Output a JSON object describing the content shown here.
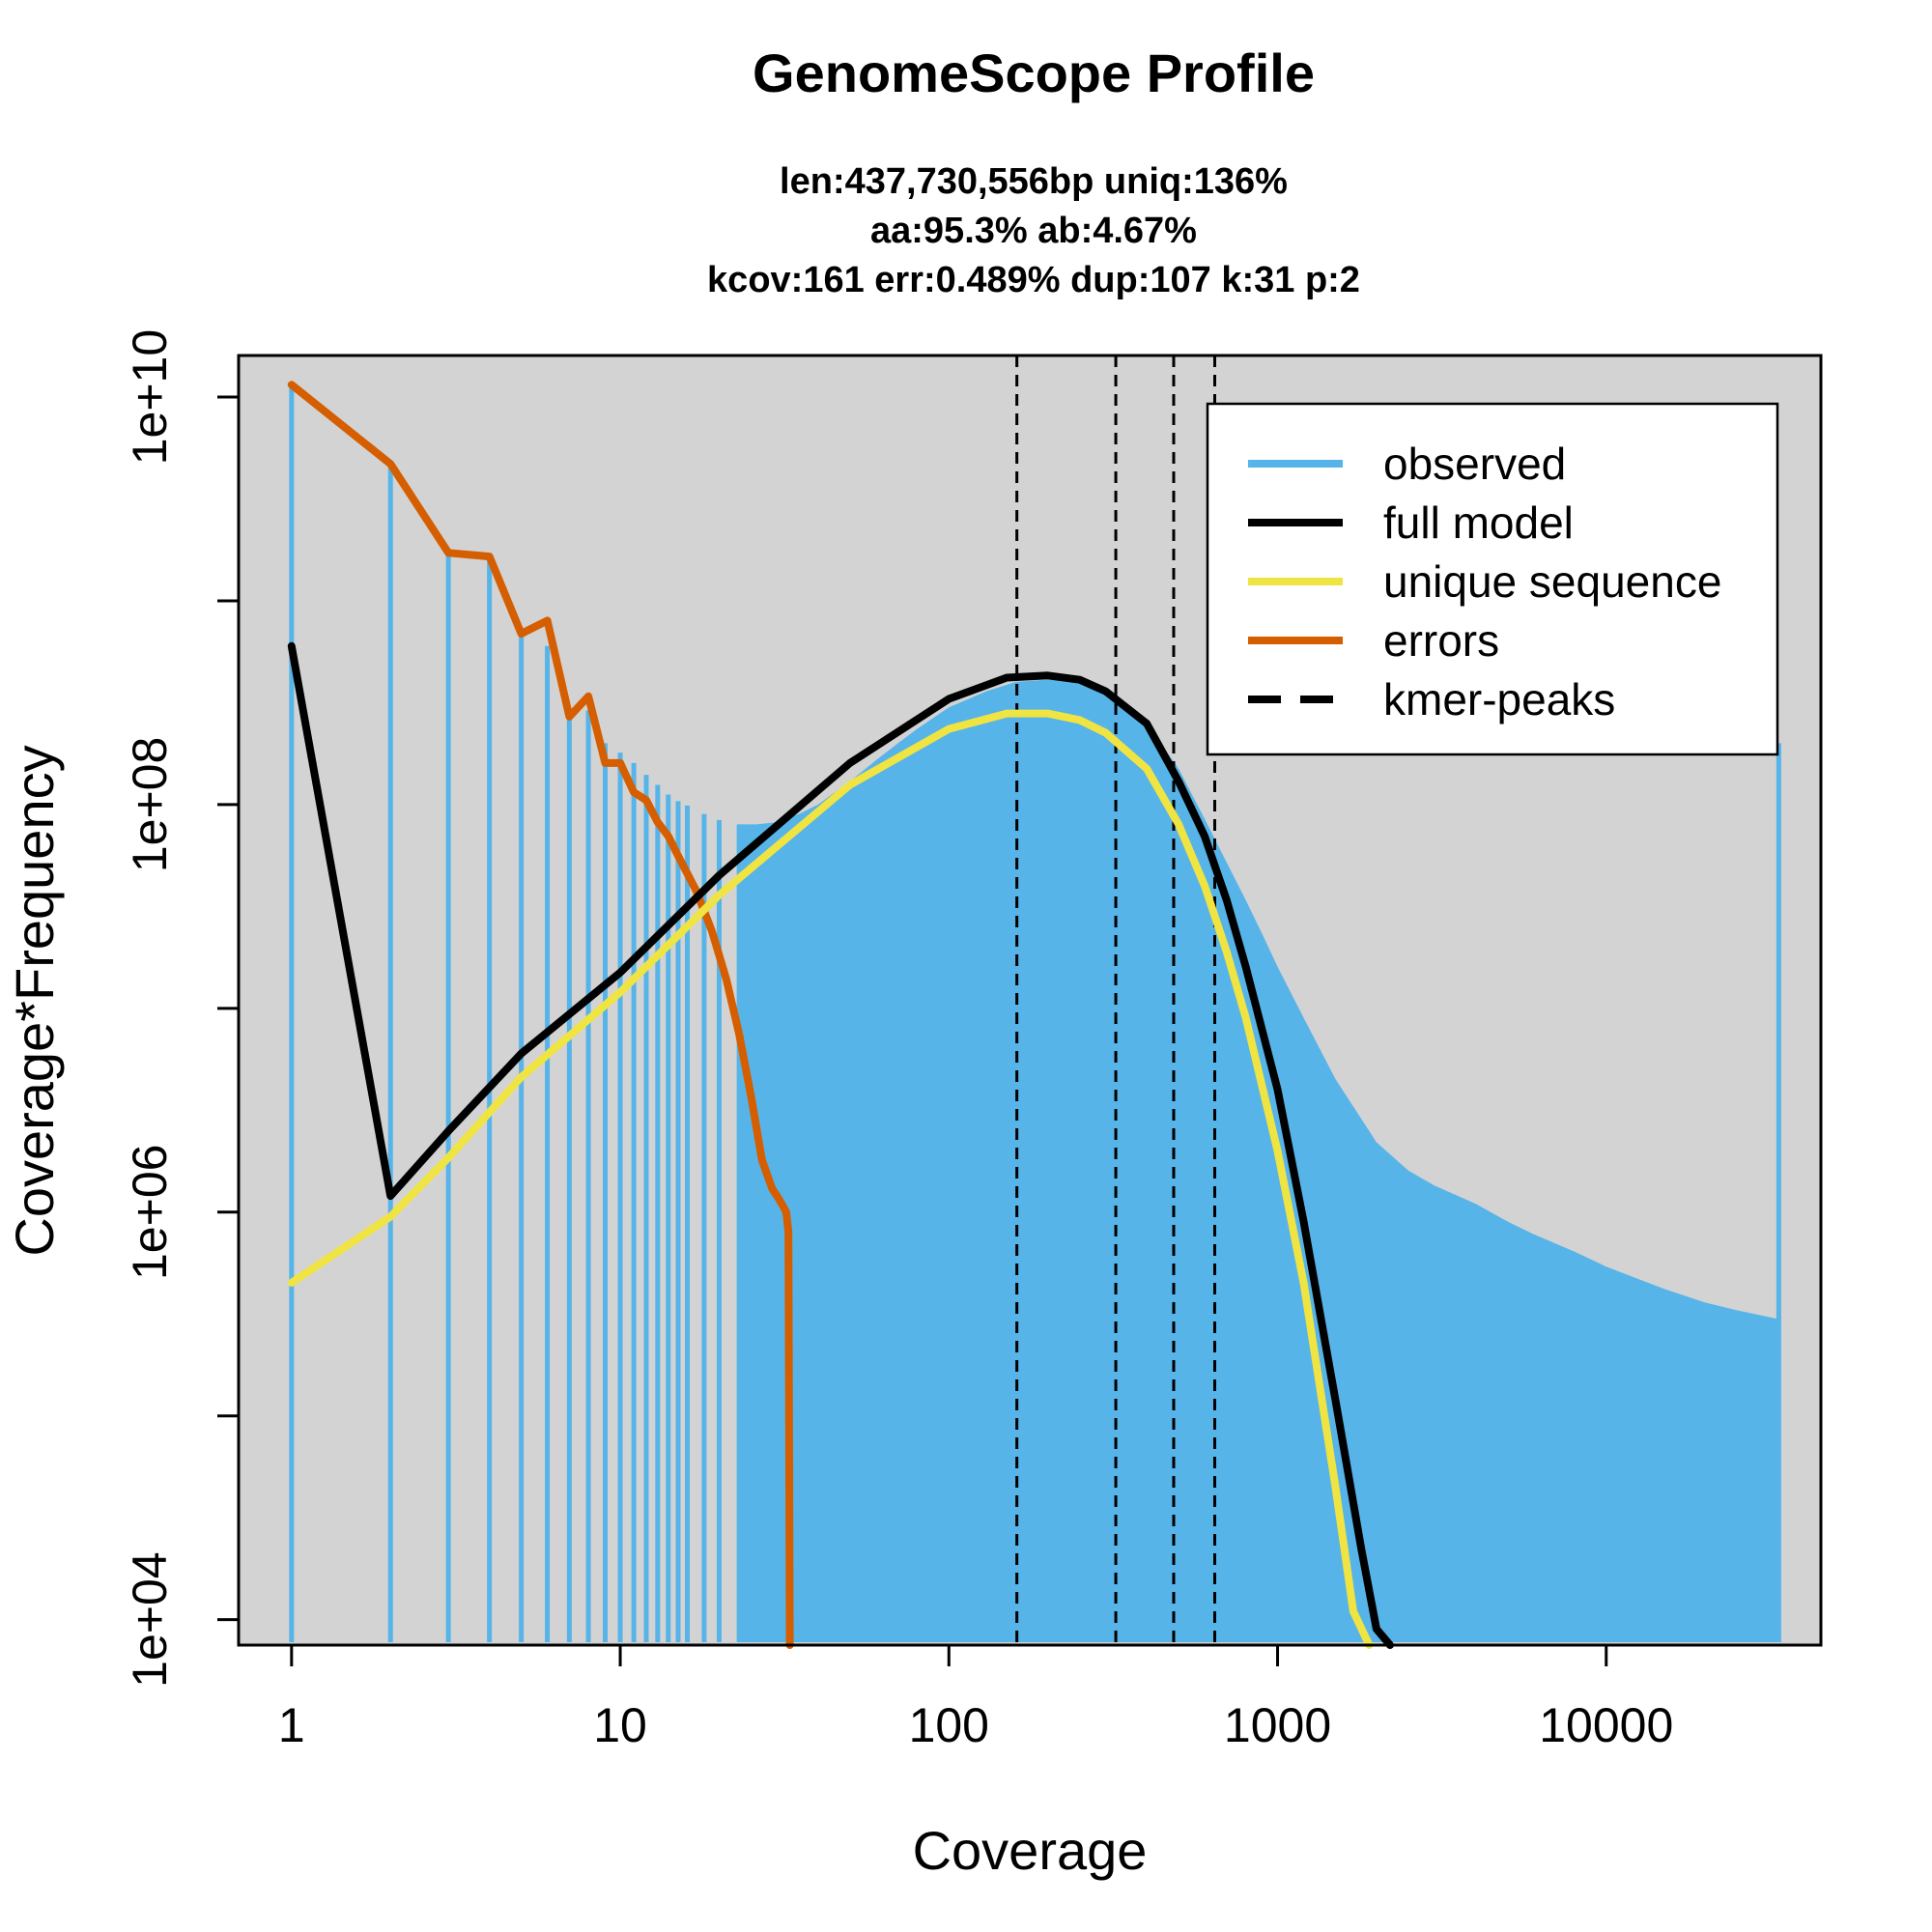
{
  "chart_data": {
    "type": "line",
    "title": "GenomeScope Profile",
    "subtitle_lines": [
      "len:437,730,556bp uniq:136%",
      "aa:95.3% ab:4.67%",
      "kcov:161 err:0.489%  dup:107  k:31 p:2"
    ],
    "xlabel": "Coverage",
    "ylabel": "Coverage*Frequency",
    "x_scale": "log",
    "y_scale": "log",
    "xlim": [
      0.69,
      45000
    ],
    "ylim": [
      7500,
      16000000000
    ],
    "x_ticks": [
      {
        "value": 1,
        "label": "1"
      },
      {
        "value": 10,
        "label": "10"
      },
      {
        "value": 100,
        "label": "100"
      },
      {
        "value": 1000,
        "label": "1000"
      },
      {
        "value": 10000,
        "label": "10000"
      }
    ],
    "y_ticks": [
      {
        "value": 10000,
        "label": "1e+04"
      },
      {
        "value": 100000,
        "label": ""
      },
      {
        "value": 1000000,
        "label": "1e+06"
      },
      {
        "value": 10000000,
        "label": ""
      },
      {
        "value": 100000000,
        "label": "1e+08"
      },
      {
        "value": 1000000000,
        "label": ""
      },
      {
        "value": 10000000000,
        "label": "1e+10"
      }
    ],
    "colors": {
      "panel_background": "#d3d3d3",
      "observed": "#56b4e9",
      "full_model": "#000000",
      "unique_sequence": "#f0e442",
      "errors": "#d55e00",
      "kmer_peaks": "#000000"
    },
    "legend": {
      "placement": "top-right",
      "entries": [
        {
          "label": "observed",
          "color": "#56b4e9",
          "style": "solid"
        },
        {
          "label": "full model",
          "color": "#000000",
          "style": "solid"
        },
        {
          "label": "unique sequence",
          "color": "#f0e442",
          "style": "solid"
        },
        {
          "label": "errors",
          "color": "#d55e00",
          "style": "solid"
        },
        {
          "label": "kmer-peaks",
          "color": "#000000",
          "style": "dashed"
        }
      ]
    },
    "kmer_peaks": [
      161,
      322,
      483,
      644
    ],
    "series": [
      {
        "name": "observed",
        "kind": "histogram-bars",
        "x": [
          1,
          2,
          3,
          4,
          5,
          6,
          7,
          8,
          9,
          10,
          11,
          12,
          13,
          14,
          15,
          16,
          18,
          20,
          23,
          26,
          30,
          35,
          40,
          50,
          60,
          70,
          80,
          100,
          130,
          160,
          200,
          250,
          300,
          400,
          500,
          600,
          700,
          800,
          900,
          1000,
          1200,
          1500,
          2000,
          2500,
          3000,
          4000,
          5000,
          6000,
          8000,
          10000,
          15000,
          20000,
          25000,
          30000,
          33000,
          33500
        ],
        "y": [
          11500000000,
          4700000000,
          1720000000,
          1650000000,
          690000000,
          600000000,
          270000000,
          290000000,
          200000000,
          180000000,
          160000000,
          140000000,
          125000000,
          112000000,
          104000000,
          99000000,
          90000000,
          84000000,
          80000000,
          80000000,
          82000000,
          90000000,
          100000000,
          130000000,
          165000000,
          200000000,
          235000000,
          300000000,
          360000000,
          400000000,
          410000000,
          400000000,
          360000000,
          250000000,
          150000000,
          85000000,
          52000000,
          34000000,
          23000000,
          16000000,
          9000000,
          4500000,
          2200000,
          1600000,
          1350000,
          1100000,
          900000,
          780000,
          640000,
          540000,
          420000,
          360000,
          330000,
          310000,
          300000,
          200000000
        ]
      },
      {
        "name": "full model",
        "kind": "curve",
        "x": [
          1,
          2,
          3,
          5,
          10,
          20,
          50,
          100,
          150,
          200,
          250,
          300,
          400,
          500,
          600,
          700,
          800,
          1000,
          1200,
          1500,
          1800,
          2000,
          2200
        ],
        "y": [
          600000000,
          1200000,
          2500000,
          6000000,
          15000000,
          45000000,
          160000000,
          330000000,
          420000000,
          430000000,
          410000000,
          360000000,
          250000000,
          130000000,
          70000000,
          34000000,
          16000000,
          4000000,
          900000,
          120000,
          22000,
          9000,
          4000
        ]
      },
      {
        "name": "unique sequence",
        "kind": "curve",
        "x": [
          1,
          2,
          3,
          5,
          10,
          20,
          50,
          100,
          150,
          200,
          250,
          300,
          400,
          500,
          600,
          700,
          800,
          1000,
          1200,
          1500,
          1700,
          1900
        ],
        "y": [
          450000,
          950000,
          1850000,
          4600000,
          12000000,
          36000000,
          125000000,
          235000000,
          280000000,
          280000000,
          260000000,
          225000000,
          150000000,
          80000000,
          40000000,
          19000000,
          9000000,
          2000000,
          450000,
          45000,
          11000,
          3000
        ]
      },
      {
        "name": "errors",
        "kind": "curve",
        "x": [
          1,
          2,
          3,
          4,
          5,
          6,
          7,
          8,
          9,
          10,
          11,
          12,
          13,
          14,
          15,
          17,
          19,
          21,
          23,
          25,
          27,
          29,
          30,
          31,
          32,
          32.5,
          32.8
        ],
        "y": [
          11500000000,
          4700000000,
          1720000000,
          1650000000,
          690000000,
          800000000,
          270000000,
          340000000,
          160000000,
          160000000,
          115000000,
          105000000,
          82000000,
          70000000,
          56000000,
          38000000,
          24000000,
          14000000,
          7500000,
          3700000,
          1800000,
          1300000,
          1200000,
          1100000,
          1000000,
          800000,
          7500
        ]
      }
    ]
  }
}
